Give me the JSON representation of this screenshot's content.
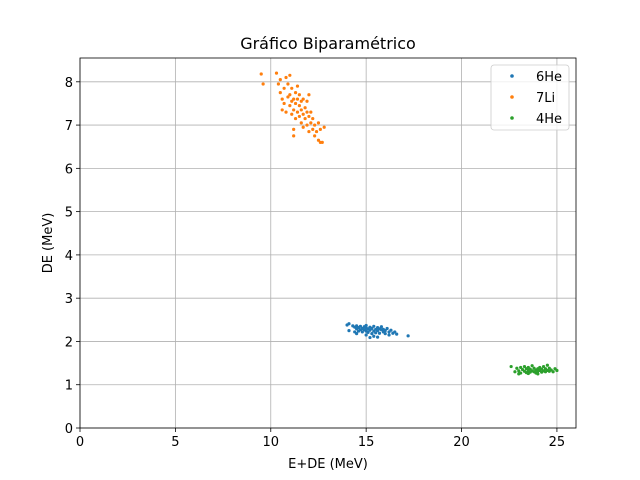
{
  "chart_data": {
    "type": "scatter",
    "title": "Gráfico Biparamétrico",
    "xlabel": "E+DE (MeV)",
    "ylabel": "DE (MeV)",
    "xlim": [
      0,
      26
    ],
    "ylim": [
      0,
      8.55
    ],
    "xticks": [
      "0",
      "5",
      "10",
      "15",
      "20",
      "25"
    ],
    "yticks": [
      "0",
      "1",
      "2",
      "3",
      "4",
      "5",
      "6",
      "7",
      "8"
    ],
    "grid": true,
    "legend_position": "top-right",
    "series": [
      {
        "name": "6He",
        "color": "#1f77b4",
        "points": [
          [
            14.0,
            2.38
          ],
          [
            14.1,
            2.41
          ],
          [
            14.1,
            2.25
          ],
          [
            14.3,
            2.36
          ],
          [
            14.4,
            2.33
          ],
          [
            14.5,
            2.29
          ],
          [
            14.5,
            2.36
          ],
          [
            14.6,
            2.24
          ],
          [
            14.6,
            2.32
          ],
          [
            14.7,
            2.27
          ],
          [
            14.7,
            2.35
          ],
          [
            14.8,
            2.3
          ],
          [
            14.8,
            2.22
          ],
          [
            14.9,
            2.34
          ],
          [
            14.9,
            2.27
          ],
          [
            15.0,
            2.31
          ],
          [
            15.0,
            2.24
          ],
          [
            15.0,
            2.37
          ],
          [
            15.1,
            2.29
          ],
          [
            15.1,
            2.21
          ],
          [
            15.2,
            2.33
          ],
          [
            15.2,
            2.26
          ],
          [
            15.3,
            2.3
          ],
          [
            15.3,
            2.18
          ],
          [
            15.4,
            2.35
          ],
          [
            15.4,
            2.24
          ],
          [
            15.5,
            2.28
          ],
          [
            15.5,
            2.2
          ],
          [
            15.6,
            2.32
          ],
          [
            15.6,
            2.25
          ],
          [
            15.7,
            2.29
          ],
          [
            15.7,
            2.19
          ],
          [
            15.8,
            2.27
          ],
          [
            15.8,
            2.34
          ],
          [
            15.9,
            2.22
          ],
          [
            15.9,
            2.28
          ],
          [
            16.0,
            2.25
          ],
          [
            16.0,
            2.18
          ],
          [
            16.1,
            2.3
          ],
          [
            16.2,
            2.22
          ],
          [
            16.3,
            2.26
          ],
          [
            16.4,
            2.19
          ],
          [
            16.5,
            2.22
          ],
          [
            16.6,
            2.17
          ],
          [
            17.2,
            2.13
          ],
          [
            14.5,
            2.18
          ],
          [
            15.0,
            2.15
          ],
          [
            15.4,
            2.12
          ],
          [
            14.4,
            2.22
          ],
          [
            15.2,
            2.09
          ],
          [
            15.6,
            2.1
          ],
          [
            16.2,
            2.15
          ]
        ]
      },
      {
        "name": "7Li",
        "color": "#ff7f0e",
        "points": [
          [
            9.5,
            8.18
          ],
          [
            9.6,
            7.95
          ],
          [
            10.3,
            8.2
          ],
          [
            10.4,
            7.95
          ],
          [
            10.5,
            7.75
          ],
          [
            10.5,
            8.05
          ],
          [
            10.6,
            7.6
          ],
          [
            10.6,
            7.35
          ],
          [
            10.7,
            7.85
          ],
          [
            10.7,
            7.5
          ],
          [
            10.8,
            8.1
          ],
          [
            10.8,
            7.3
          ],
          [
            10.9,
            7.65
          ],
          [
            10.9,
            7.95
          ],
          [
            11.0,
            7.45
          ],
          [
            11.0,
            7.7
          ],
          [
            11.0,
            8.15
          ],
          [
            11.1,
            7.55
          ],
          [
            11.1,
            7.25
          ],
          [
            11.1,
            7.85
          ],
          [
            11.2,
            7.6
          ],
          [
            11.2,
            7.35
          ],
          [
            11.2,
            6.75
          ],
          [
            11.2,
            6.9
          ],
          [
            11.3,
            7.75
          ],
          [
            11.3,
            7.5
          ],
          [
            11.3,
            7.15
          ],
          [
            11.4,
            7.6
          ],
          [
            11.4,
            7.3
          ],
          [
            11.4,
            7.9
          ],
          [
            11.5,
            7.45
          ],
          [
            11.5,
            7.2
          ],
          [
            11.5,
            7.7
          ],
          [
            11.6,
            7.55
          ],
          [
            11.6,
            7.05
          ],
          [
            11.6,
            7.35
          ],
          [
            11.7,
            7.6
          ],
          [
            11.7,
            7.25
          ],
          [
            11.7,
            6.95
          ],
          [
            11.8,
            7.4
          ],
          [
            11.8,
            7.15
          ],
          [
            11.9,
            7.3
          ],
          [
            11.9,
            7.0
          ],
          [
            11.9,
            7.55
          ],
          [
            12.0,
            7.2
          ],
          [
            12.0,
            6.85
          ],
          [
            12.0,
            7.7
          ],
          [
            12.1,
            7.05
          ],
          [
            12.1,
            7.3
          ],
          [
            12.2,
            6.9
          ],
          [
            12.2,
            7.15
          ],
          [
            12.3,
            6.75
          ],
          [
            12.3,
            7.0
          ],
          [
            12.4,
            6.85
          ],
          [
            12.5,
            7.05
          ],
          [
            12.5,
            6.65
          ],
          [
            12.6,
            6.9
          ],
          [
            12.7,
            6.6
          ],
          [
            12.8,
            6.95
          ],
          [
            12.6,
            6.6
          ]
        ]
      },
      {
        "name": "4He",
        "color": "#2ca02c",
        "points": [
          [
            22.6,
            1.42
          ],
          [
            22.8,
            1.3
          ],
          [
            22.9,
            1.38
          ],
          [
            23.0,
            1.32
          ],
          [
            23.1,
            1.4
          ],
          [
            23.1,
            1.27
          ],
          [
            23.2,
            1.35
          ],
          [
            23.3,
            1.31
          ],
          [
            23.3,
            1.42
          ],
          [
            23.4,
            1.28
          ],
          [
            23.4,
            1.37
          ],
          [
            23.5,
            1.33
          ],
          [
            23.5,
            1.4
          ],
          [
            23.6,
            1.29
          ],
          [
            23.6,
            1.36
          ],
          [
            23.7,
            1.32
          ],
          [
            23.7,
            1.44
          ],
          [
            23.8,
            1.3
          ],
          [
            23.8,
            1.38
          ],
          [
            23.9,
            1.34
          ],
          [
            23.9,
            1.27
          ],
          [
            24.0,
            1.37
          ],
          [
            24.0,
            1.31
          ],
          [
            24.1,
            1.4
          ],
          [
            24.1,
            1.33
          ],
          [
            24.2,
            1.29
          ],
          [
            24.2,
            1.36
          ],
          [
            24.3,
            1.32
          ],
          [
            24.3,
            1.42
          ],
          [
            24.4,
            1.3
          ],
          [
            24.4,
            1.37
          ],
          [
            24.5,
            1.33
          ],
          [
            24.5,
            1.45
          ],
          [
            24.6,
            1.31
          ],
          [
            24.6,
            1.38
          ],
          [
            24.7,
            1.34
          ],
          [
            24.8,
            1.3
          ],
          [
            24.9,
            1.37
          ],
          [
            25.0,
            1.33
          ],
          [
            23.0,
            1.25
          ],
          [
            23.5,
            1.26
          ],
          [
            24.0,
            1.25
          ]
        ]
      }
    ]
  }
}
